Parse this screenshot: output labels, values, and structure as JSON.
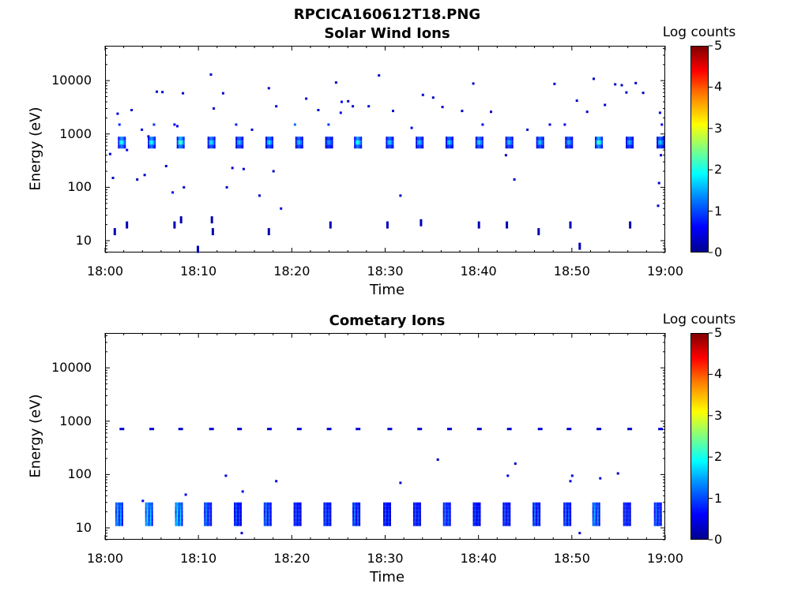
{
  "chart_data": [
    {
      "type": "heatmap",
      "file_title": "RPCICA160612T18.PNG",
      "title": "Solar Wind Ions",
      "xlabel": "Time",
      "ylabel": "Energy (eV)",
      "x_ticks": [
        "18:00",
        "18:10",
        "18:20",
        "18:30",
        "18:40",
        "18:50",
        "19:00"
      ],
      "x_range_minutes": [
        0,
        60
      ],
      "y_ticks": [
        "10",
        "100",
        "1000",
        "10000"
      ],
      "y_tick_values": [
        10,
        100,
        1000,
        10000
      ],
      "y_scale": "log",
      "ylim": [
        6,
        45000
      ],
      "colorbar_label": "Log counts",
      "colorbar_ticks": [
        "0",
        "1",
        "2",
        "3",
        "4",
        "5"
      ],
      "colorbar_range": [
        0,
        5
      ],
      "colormap": "jet",
      "main_band_energy_eV": 700,
      "main_band_times_min": [
        1.8,
        5.0,
        8.1,
        11.4,
        14.4,
        17.6,
        20.8,
        24.0,
        27.1,
        30.5,
        33.7,
        36.9,
        40.1,
        43.3,
        46.6,
        49.7,
        52.9,
        56.2,
        59.5
      ],
      "main_band_peak_log_counts": [
        2.0,
        2.0,
        2.2,
        1.8,
        1.6,
        1.8,
        1.6,
        1.4,
        2.0,
        1.7,
        1.6,
        1.7,
        1.7,
        1.6,
        1.6,
        1.5,
        2.2,
        1.5,
        1.6
      ],
      "sparse_points": [
        {
          "t": 0.5,
          "e": 420,
          "v": 0.3
        },
        {
          "t": 0.8,
          "e": 150,
          "v": 0.3
        },
        {
          "t": 1.3,
          "e": 2400,
          "v": 0.4
        },
        {
          "t": 1.5,
          "e": 1500,
          "v": 0.8
        },
        {
          "t": 2.3,
          "e": 500,
          "v": 0.5
        },
        {
          "t": 2.8,
          "e": 2800,
          "v": 0.4
        },
        {
          "t": 3.4,
          "e": 140,
          "v": 0.3
        },
        {
          "t": 3.9,
          "e": 1200,
          "v": 0.4
        },
        {
          "t": 4.2,
          "e": 170,
          "v": 0.3
        },
        {
          "t": 4.6,
          "e": 900,
          "v": 0.5
        },
        {
          "t": 5.2,
          "e": 1500,
          "v": 0.9
        },
        {
          "t": 5.5,
          "e": 6200,
          "v": 0.3
        },
        {
          "t": 6.1,
          "e": 6100,
          "v": 0.3
        },
        {
          "t": 6.5,
          "e": 250,
          "v": 0.3
        },
        {
          "t": 7.2,
          "e": 80,
          "v": 0.5
        },
        {
          "t": 7.4,
          "e": 1500,
          "v": 0.6
        },
        {
          "t": 7.7,
          "e": 1400,
          "v": 0.5
        },
        {
          "t": 8.3,
          "e": 5800,
          "v": 0.3
        },
        {
          "t": 8.4,
          "e": 100,
          "v": 0.3
        },
        {
          "t": 11.3,
          "e": 13000,
          "v": 0.3
        },
        {
          "t": 11.6,
          "e": 3000,
          "v": 0.3
        },
        {
          "t": 12.6,
          "e": 5800,
          "v": 0.3
        },
        {
          "t": 13.0,
          "e": 100,
          "v": 0.3
        },
        {
          "t": 13.6,
          "e": 230,
          "v": 0.4
        },
        {
          "t": 14.0,
          "e": 1500,
          "v": 0.8
        },
        {
          "t": 14.8,
          "e": 220,
          "v": 0.4
        },
        {
          "t": 15.7,
          "e": 1200,
          "v": 0.3
        },
        {
          "t": 16.5,
          "e": 70,
          "v": 0.3
        },
        {
          "t": 17.5,
          "e": 7200,
          "v": 0.3
        },
        {
          "t": 18.0,
          "e": 200,
          "v": 0.3
        },
        {
          "t": 18.3,
          "e": 3300,
          "v": 0.3
        },
        {
          "t": 18.8,
          "e": 40,
          "v": 0.5
        },
        {
          "t": 20.3,
          "e": 1500,
          "v": 1.2
        },
        {
          "t": 21.5,
          "e": 4600,
          "v": 0.3
        },
        {
          "t": 22.8,
          "e": 2800,
          "v": 0.3
        },
        {
          "t": 23.9,
          "e": 1500,
          "v": 0.9
        },
        {
          "t": 24.7,
          "e": 9200,
          "v": 0.3
        },
        {
          "t": 25.2,
          "e": 2500,
          "v": 0.5
        },
        {
          "t": 25.3,
          "e": 4000,
          "v": 0.5
        },
        {
          "t": 26.0,
          "e": 4100,
          "v": 0.3
        },
        {
          "t": 26.5,
          "e": 3300,
          "v": 0.3
        },
        {
          "t": 28.2,
          "e": 3300,
          "v": 0.3
        },
        {
          "t": 29.3,
          "e": 12500,
          "v": 0.3
        },
        {
          "t": 30.8,
          "e": 2700,
          "v": 0.3
        },
        {
          "t": 31.6,
          "e": 70,
          "v": 0.3
        },
        {
          "t": 32.8,
          "e": 1300,
          "v": 0.5
        },
        {
          "t": 34.0,
          "e": 5400,
          "v": 0.3
        },
        {
          "t": 35.1,
          "e": 4800,
          "v": 0.3
        },
        {
          "t": 36.1,
          "e": 3200,
          "v": 0.3
        },
        {
          "t": 38.2,
          "e": 2700,
          "v": 0.3
        },
        {
          "t": 39.4,
          "e": 8800,
          "v": 0.3
        },
        {
          "t": 40.4,
          "e": 1500,
          "v": 0.6
        },
        {
          "t": 41.3,
          "e": 2600,
          "v": 0.3
        },
        {
          "t": 42.9,
          "e": 400,
          "v": 0.3
        },
        {
          "t": 43.8,
          "e": 140,
          "v": 0.3
        },
        {
          "t": 45.2,
          "e": 1200,
          "v": 0.4
        },
        {
          "t": 47.6,
          "e": 1500,
          "v": 0.4
        },
        {
          "t": 48.1,
          "e": 8700,
          "v": 0.3
        },
        {
          "t": 49.2,
          "e": 1500,
          "v": 0.5
        },
        {
          "t": 50.5,
          "e": 4200,
          "v": 0.3
        },
        {
          "t": 51.6,
          "e": 2600,
          "v": 0.3
        },
        {
          "t": 52.3,
          "e": 10800,
          "v": 0.3
        },
        {
          "t": 53.5,
          "e": 3500,
          "v": 0.3
        },
        {
          "t": 54.6,
          "e": 8500,
          "v": 0.3
        },
        {
          "t": 55.3,
          "e": 8200,
          "v": 0.3
        },
        {
          "t": 55.8,
          "e": 6000,
          "v": 0.3
        },
        {
          "t": 56.8,
          "e": 9000,
          "v": 0.3
        },
        {
          "t": 57.6,
          "e": 5900,
          "v": 0.3
        },
        {
          "t": 59.4,
          "e": 2500,
          "v": 0.4
        },
        {
          "t": 59.6,
          "e": 1500,
          "v": 0.6
        },
        {
          "t": 59.5,
          "e": 400,
          "v": 0.3
        },
        {
          "t": 59.3,
          "e": 120,
          "v": 0.3
        },
        {
          "t": 59.2,
          "e": 45,
          "v": 0.3
        }
      ],
      "low_energy_points": [
        {
          "t": 1.0,
          "e": 15,
          "v": 0.2
        },
        {
          "t": 2.3,
          "e": 20,
          "v": 0.2
        },
        {
          "t": 7.4,
          "e": 20,
          "v": 0.2
        },
        {
          "t": 8.1,
          "e": 25,
          "v": 0.2
        },
        {
          "t": 9.9,
          "e": 7,
          "v": 0.2
        },
        {
          "t": 11.5,
          "e": 15,
          "v": 0.2
        },
        {
          "t": 11.4,
          "e": 25,
          "v": 0.2
        },
        {
          "t": 17.5,
          "e": 15,
          "v": 0.2
        },
        {
          "t": 24.1,
          "e": 20,
          "v": 0.2
        },
        {
          "t": 30.2,
          "e": 20,
          "v": 0.2
        },
        {
          "t": 33.8,
          "e": 22,
          "v": 0.2
        },
        {
          "t": 40.0,
          "e": 20,
          "v": 0.2
        },
        {
          "t": 43.0,
          "e": 20,
          "v": 0.2
        },
        {
          "t": 46.4,
          "e": 15,
          "v": 0.2
        },
        {
          "t": 49.8,
          "e": 20,
          "v": 0.2
        },
        {
          "t": 50.8,
          "e": 8,
          "v": 0.2
        },
        {
          "t": 56.2,
          "e": 20,
          "v": 0.2
        }
      ]
    },
    {
      "type": "heatmap",
      "title": "Cometary Ions",
      "xlabel": "Time",
      "ylabel": "Energy (eV)",
      "x_ticks": [
        "18:00",
        "18:10",
        "18:20",
        "18:30",
        "18:40",
        "18:50",
        "19:00"
      ],
      "x_range_minutes": [
        0,
        60
      ],
      "y_ticks": [
        "10",
        "100",
        "1000",
        "10000"
      ],
      "y_tick_values": [
        10,
        100,
        1000,
        10000
      ],
      "y_scale": "log",
      "ylim": [
        6,
        45000
      ],
      "colorbar_label": "Log counts",
      "colorbar_ticks": [
        "0",
        "1",
        "2",
        "3",
        "4",
        "5"
      ],
      "colorbar_range": [
        0,
        5
      ],
      "colormap": "jet",
      "low_band_energy_eV": [
        12,
        30
      ],
      "low_band_times_min": [
        1.6,
        4.8,
        8.0,
        11.1,
        14.3,
        17.5,
        20.7,
        23.9,
        27.0,
        30.3,
        33.5,
        36.7,
        39.9,
        43.1,
        46.3,
        49.6,
        52.7,
        56.0,
        59.3
      ],
      "low_band_peak_log_counts": [
        1.6,
        1.8,
        1.9,
        1.3,
        1.1,
        1.3,
        1.0,
        1.1,
        1.2,
        1.0,
        1.0,
        1.2,
        1.0,
        1.0,
        1.2,
        1.2,
        1.5,
        1.0,
        1.2
      ],
      "band_700_energy_eV": 700,
      "band_700_times_min": [
        1.8,
        5.0,
        8.1,
        11.4,
        14.4,
        17.6,
        20.8,
        24.0,
        27.1,
        30.5,
        33.7,
        36.9,
        40.1,
        43.3,
        46.6,
        49.7,
        52.9,
        56.2,
        59.5
      ],
      "sparse_points": [
        {
          "t": 4.0,
          "e": 32,
          "v": 0.5
        },
        {
          "t": 8.6,
          "e": 42,
          "v": 0.5
        },
        {
          "t": 12.9,
          "e": 95,
          "v": 0.4
        },
        {
          "t": 14.7,
          "e": 48,
          "v": 0.4
        },
        {
          "t": 18.3,
          "e": 75,
          "v": 0.4
        },
        {
          "t": 31.6,
          "e": 70,
          "v": 0.3
        },
        {
          "t": 35.6,
          "e": 190,
          "v": 0.3
        },
        {
          "t": 43.1,
          "e": 95,
          "v": 0.4
        },
        {
          "t": 43.9,
          "e": 160,
          "v": 0.3
        },
        {
          "t": 49.8,
          "e": 75,
          "v": 0.4
        },
        {
          "t": 50.0,
          "e": 95,
          "v": 0.4
        },
        {
          "t": 53.0,
          "e": 85,
          "v": 0.4
        },
        {
          "t": 54.9,
          "e": 105,
          "v": 0.3
        },
        {
          "t": 14.6,
          "e": 8,
          "v": 0.3
        },
        {
          "t": 50.8,
          "e": 8,
          "v": 0.3
        }
      ]
    }
  ]
}
